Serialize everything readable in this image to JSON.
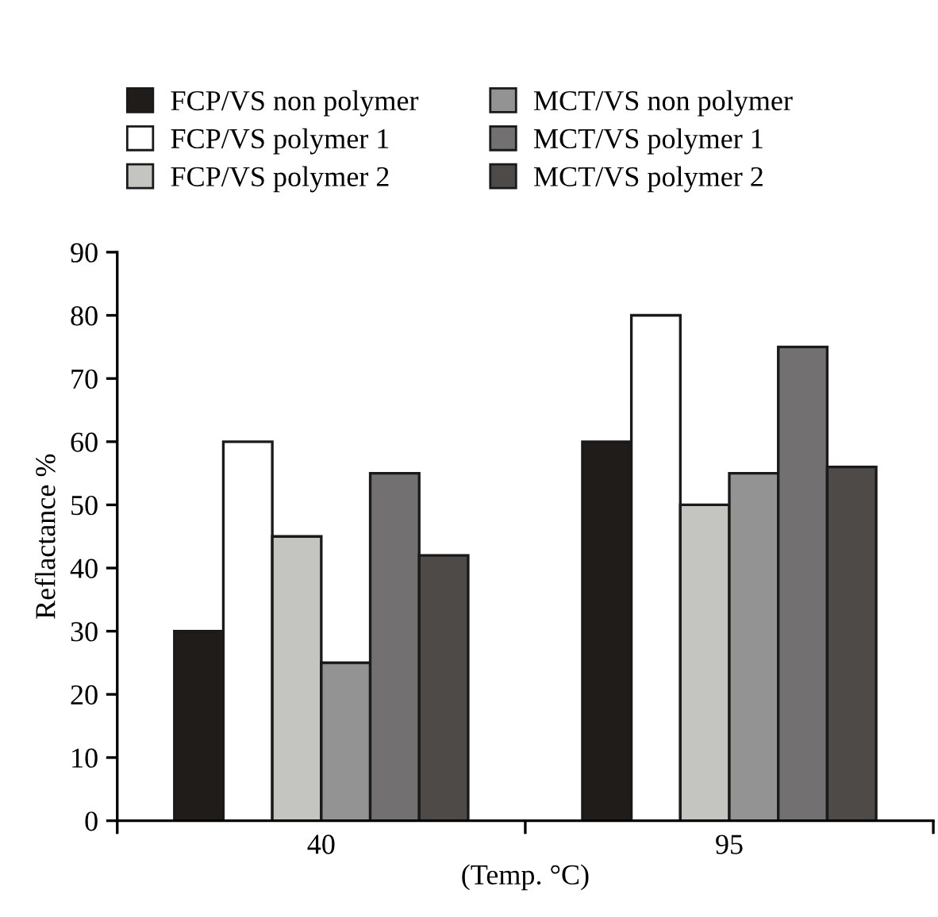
{
  "chart_data": {
    "type": "bar",
    "xlabel": "(Temp. °C)",
    "ylabel": "Reflactance %",
    "categories": [
      "40",
      "95"
    ],
    "series": [
      {
        "name": "FCP/VS non polymer",
        "color": "#201c1a",
        "values": [
          30,
          60
        ]
      },
      {
        "name": "FCP/VS polymer 1",
        "color": "#ffffff",
        "values": [
          60,
          80
        ]
      },
      {
        "name": "FCP/VS polymer 2",
        "color": "#c4c5c1",
        "values": [
          45,
          50
        ]
      },
      {
        "name": "MCT/VS non polymer",
        "color": "#939393",
        "values": [
          25,
          55
        ]
      },
      {
        "name": "MCT/VS polymer 1",
        "color": "#737071",
        "values": [
          55,
          75
        ]
      },
      {
        "name": "MCT/VS polymer 2",
        "color": "#4e4a48",
        "values": [
          42,
          56
        ]
      }
    ],
    "ylim": [
      0,
      90
    ],
    "yticks": [
      0,
      10,
      20,
      30,
      40,
      50,
      60,
      70,
      80,
      90
    ],
    "grid": false,
    "legend": "top"
  }
}
